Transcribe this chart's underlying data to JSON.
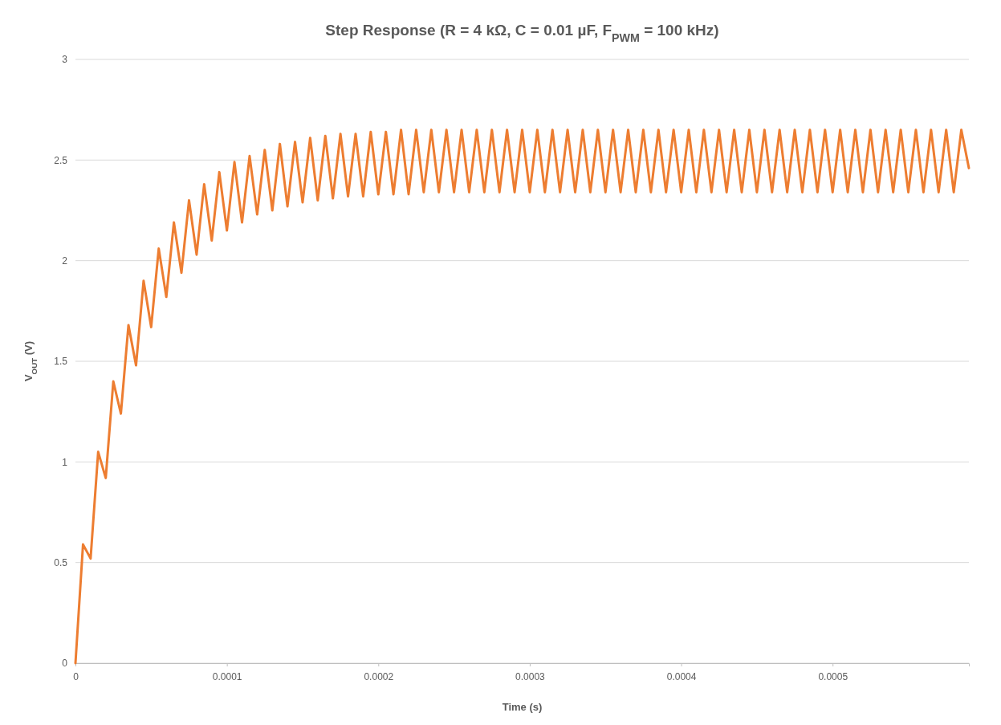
{
  "chart_data": {
    "type": "line",
    "title": "Step Response (R = 4 kΩ, C = 0.01 µF, F$_{PWM}$ = 100 kHz)",
    "xlabel": "Time (s)",
    "ylabel": "V$_{OUT}$ (V)",
    "x": [
      0,
      5e-06,
      1e-05,
      1.5e-05,
      2e-05,
      2.5e-05,
      3e-05,
      3.5e-05,
      4e-05,
      4.5e-05,
      5e-05,
      5.5e-05,
      6e-05,
      6.5e-05,
      7e-05,
      7.5e-05,
      8e-05,
      8.5e-05,
      9e-05,
      9.5e-05,
      0.0001,
      0.000105,
      0.00011,
      0.000115,
      0.00012,
      0.000125,
      0.00013,
      0.000135,
      0.00014,
      0.000145,
      0.00015,
      0.000155,
      0.00016,
      0.000165,
      0.00017,
      0.000175,
      0.00018,
      0.000185,
      0.00019,
      0.000195,
      0.0002,
      0.000205,
      0.00021,
      0.000215,
      0.00022,
      0.000225,
      0.00023,
      0.000235,
      0.00024,
      0.000245,
      0.00025,
      0.000255,
      0.00026,
      0.000265,
      0.00027,
      0.000275,
      0.00028,
      0.000285,
      0.00029,
      0.000295,
      0.0003,
      0.000305,
      0.00031,
      0.000315,
      0.00032,
      0.000325,
      0.00033,
      0.000335,
      0.00034,
      0.000345,
      0.00035,
      0.000355,
      0.00036,
      0.000365,
      0.00037,
      0.000375,
      0.00038,
      0.000385,
      0.00039,
      0.000395,
      0.0004,
      0.000405,
      0.00041,
      0.000415,
      0.00042,
      0.000425,
      0.00043,
      0.000435,
      0.00044,
      0.000445,
      0.00045,
      0.000455,
      0.00046,
      0.000465,
      0.00047,
      0.000475,
      0.00048,
      0.000485,
      0.00049,
      0.000495,
      0.0005,
      0.000505,
      0.00051,
      0.000515,
      0.00052,
      0.000525,
      0.00053,
      0.000535,
      0.00054,
      0.000545,
      0.00055,
      0.000555,
      0.00056,
      0.000565,
      0.00057,
      0.000575,
      0.00058,
      0.000585,
      0.00059
    ],
    "series": [
      {
        "color": "#ed7d31",
        "values": [
          0,
          0.59,
          0.52,
          1.05,
          0.92,
          1.4,
          1.24,
          1.68,
          1.48,
          1.9,
          1.67,
          2.06,
          1.82,
          2.19,
          1.94,
          2.3,
          2.03,
          2.38,
          2.1,
          2.44,
          2.15,
          2.49,
          2.19,
          2.52,
          2.23,
          2.55,
          2.25,
          2.58,
          2.27,
          2.59,
          2.29,
          2.61,
          2.3,
          2.62,
          2.31,
          2.63,
          2.32,
          2.63,
          2.32,
          2.64,
          2.33,
          2.64,
          2.33,
          2.65,
          2.33,
          2.65,
          2.34,
          2.65,
          2.34,
          2.65,
          2.34,
          2.65,
          2.34,
          2.65,
          2.34,
          2.65,
          2.34,
          2.65,
          2.34,
          2.65,
          2.34,
          2.65,
          2.34,
          2.65,
          2.34,
          2.65,
          2.34,
          2.65,
          2.34,
          2.65,
          2.34,
          2.65,
          2.34,
          2.65,
          2.34,
          2.65,
          2.34,
          2.65,
          2.34,
          2.65,
          2.34,
          2.65,
          2.34,
          2.65,
          2.34,
          2.65,
          2.34,
          2.65,
          2.34,
          2.65,
          2.34,
          2.65,
          2.34,
          2.65,
          2.34,
          2.65,
          2.34,
          2.65,
          2.34,
          2.65,
          2.34,
          2.65,
          2.34,
          2.65,
          2.34,
          2.65,
          2.34,
          2.65,
          2.34,
          2.65,
          2.34,
          2.65,
          2.34,
          2.65,
          2.34,
          2.65,
          2.34,
          2.65,
          2.46
        ]
      }
    ],
    "xlim": [
      0,
      0.00059
    ],
    "xticks": [
      0,
      0.0001,
      0.0002,
      0.0003,
      0.0004,
      0.0005
    ],
    "ylim": [
      0,
      3
    ],
    "yticks": [
      0,
      0.5,
      1,
      1.5,
      2,
      2.5,
      3
    ],
    "grid": "y",
    "line_style": "solid",
    "marker": "none"
  }
}
